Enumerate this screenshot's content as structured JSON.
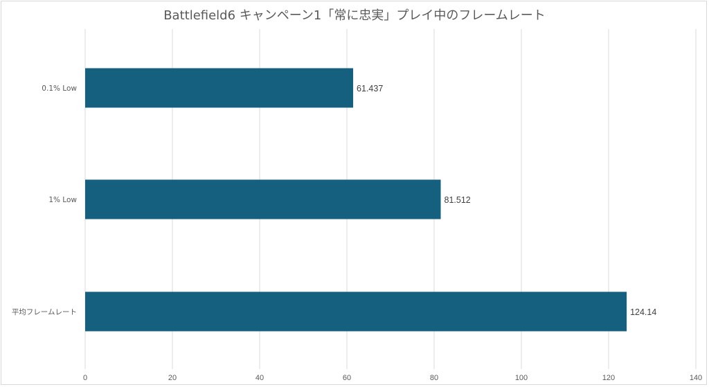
{
  "chart_data": {
    "type": "bar",
    "orientation": "horizontal",
    "title": "Battlefield6 キャンペーン1「常に忠実」プレイ中のフレームレート",
    "categories": [
      "0.1% Low",
      "1% Low",
      "平均フレームレート"
    ],
    "values": [
      61.437,
      81.512,
      124.14
    ],
    "value_labels": [
      "61.437",
      "81.512",
      "124.14"
    ],
    "xlim": [
      0,
      140
    ],
    "x_ticks": [
      0,
      20,
      40,
      60,
      80,
      100,
      120,
      140
    ],
    "xlabel": "",
    "ylabel": "",
    "grid": "vertical",
    "legend": "none",
    "colors": {
      "bar": "#16607f",
      "grid": "#d9d9d9",
      "text": "#595959"
    }
  }
}
